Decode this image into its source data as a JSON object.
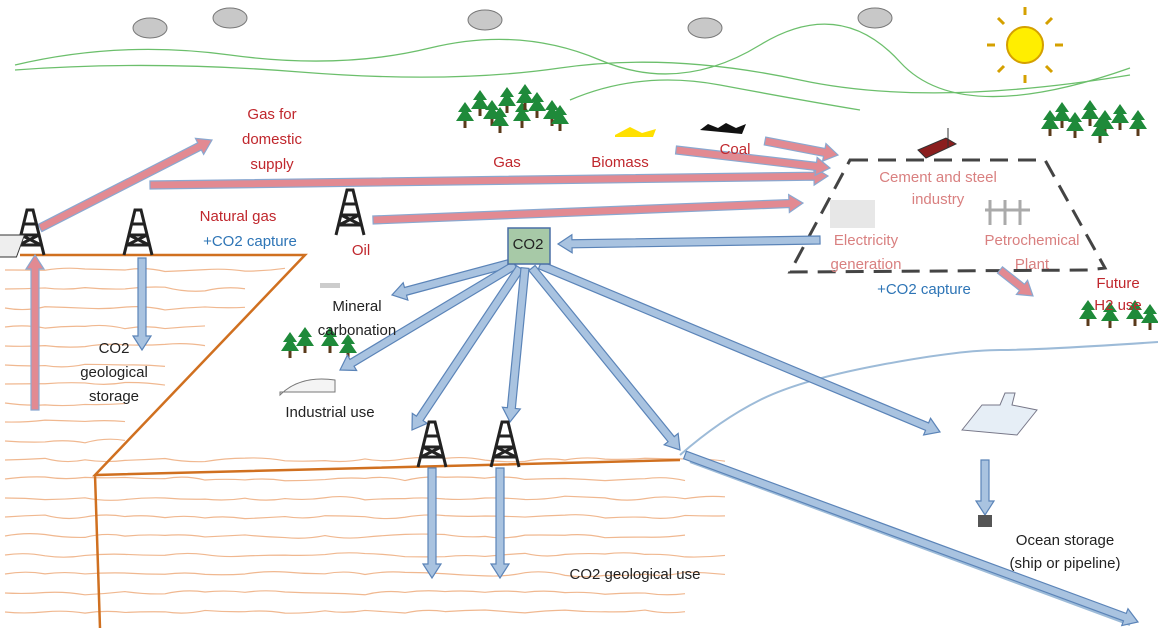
{
  "labels": [
    {
      "lines": [
        "Gas for",
        "domestic",
        "supply"
      ]
    },
    {
      "lines": [
        "Gas"
      ]
    },
    {
      "lines": [
        "Biomass"
      ]
    },
    {
      "lines": [
        "Coal"
      ]
    },
    {
      "lines": [
        "Cement and steel",
        "industry"
      ]
    },
    {
      "lines": [
        "Natural gas"
      ]
    },
    {
      "lines": [
        "+CO2 capture"
      ]
    },
    {
      "lines": [
        "Oil"
      ]
    },
    {
      "lines": [
        "CO2"
      ]
    },
    {
      "lines": [
        "Electricity",
        "generation"
      ]
    },
    {
      "lines": [
        "Petrochemical",
        "Plant"
      ]
    },
    {
      "lines": [
        "+CO2 capture"
      ]
    },
    {
      "lines": [
        "Future",
        "H2 use"
      ]
    },
    {
      "lines": [
        "Mineral",
        "carbonation"
      ]
    },
    {
      "lines": [
        "CO2",
        "geological",
        "storage"
      ]
    },
    {
      "lines": [
        "Industrial use"
      ]
    },
    {
      "lines": [
        "Ocean storage",
        "(ship or pipeline)"
      ]
    },
    {
      "lines": [
        "CO2 geological use"
      ]
    }
  ]
}
